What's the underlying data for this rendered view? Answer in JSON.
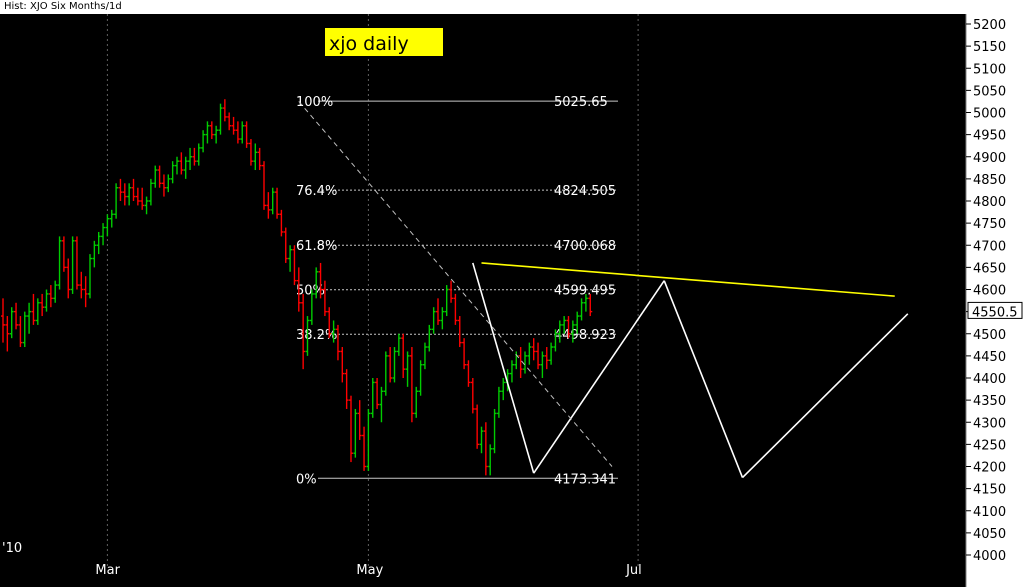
{
  "window": {
    "title": "Hist: XJO Six Months/1d"
  },
  "chart_data": {
    "type": "candlestick",
    "title": "xjo daily",
    "title_box_color": "#ffff00",
    "background": "#000000",
    "up_color": "#00cc00",
    "down_color": "#ff0000",
    "ylim": [
      4000,
      5210
    ],
    "y_ticks": [
      4000,
      4050,
      4100,
      4150,
      4200,
      4250,
      4300,
      4350,
      4400,
      4450,
      4500,
      4550,
      4600,
      4650,
      4700,
      4750,
      4800,
      4850,
      4900,
      4950,
      5000,
      5050,
      5100,
      5150,
      5200
    ],
    "x_labels": [
      {
        "label": "'10",
        "bar": 0
      },
      {
        "label": "Mar",
        "bar": 24
      },
      {
        "label": "May",
        "bar": 84
      },
      {
        "label": "Jul",
        "bar": 146
      }
    ],
    "last_price": "4550.5",
    "last_price_value": 4550.5,
    "fib_levels": [
      {
        "pct": "100%",
        "value": "5025.65",
        "y": 5025.65
      },
      {
        "pct": "76.4%",
        "value": "4824.505",
        "y": 4824.505
      },
      {
        "pct": "61.8%",
        "value": "4700.068",
        "y": 4700.068
      },
      {
        "pct": "50%",
        "value": "4599.495",
        "y": 4599.495
      },
      {
        "pct": "38.2%",
        "value": "4498.923",
        "y": 4498.923
      },
      {
        "pct": "0%",
        "value": "4173.341",
        "y": 4173.341
      }
    ],
    "ohlc": [
      [
        4540,
        4580,
        4480,
        4520
      ],
      [
        4520,
        4540,
        4460,
        4500
      ],
      [
        4500,
        4560,
        4490,
        4550
      ],
      [
        4550,
        4570,
        4510,
        4520
      ],
      [
        4520,
        4540,
        4470,
        4480
      ],
      [
        4480,
        4550,
        4470,
        4540
      ],
      [
        4540,
        4570,
        4500,
        4550
      ],
      [
        4550,
        4590,
        4520,
        4530
      ],
      [
        4530,
        4580,
        4520,
        4570
      ],
      [
        4570,
        4590,
        4540,
        4560
      ],
      [
        4560,
        4600,
        4550,
        4590
      ],
      [
        4590,
        4610,
        4560,
        4580
      ],
      [
        4580,
        4620,
        4570,
        4610
      ],
      [
        4610,
        4720,
        4600,
        4710
      ],
      [
        4710,
        4720,
        4640,
        4650
      ],
      [
        4650,
        4670,
        4580,
        4600
      ],
      [
        4600,
        4720,
        4590,
        4710
      ],
      [
        4710,
        4720,
        4600,
        4610
      ],
      [
        4610,
        4640,
        4580,
        4600
      ],
      [
        4600,
        4630,
        4560,
        4590
      ],
      [
        4590,
        4680,
        4580,
        4670
      ],
      [
        4670,
        4710,
        4650,
        4700
      ],
      [
        4700,
        4730,
        4680,
        4720
      ],
      [
        4720,
        4750,
        4700,
        4740
      ],
      [
        4740,
        4770,
        4720,
        4760
      ],
      [
        4760,
        4780,
        4740,
        4770
      ],
      [
        4770,
        4840,
        4760,
        4830
      ],
      [
        4830,
        4850,
        4800,
        4820
      ],
      [
        4820,
        4840,
        4790,
        4810
      ],
      [
        4810,
        4840,
        4790,
        4830
      ],
      [
        4830,
        4850,
        4800,
        4810
      ],
      [
        4810,
        4830,
        4790,
        4800
      ],
      [
        4800,
        4830,
        4780,
        4790
      ],
      [
        4790,
        4810,
        4770,
        4800
      ],
      [
        4800,
        4850,
        4790,
        4840
      ],
      [
        4840,
        4880,
        4830,
        4870
      ],
      [
        4870,
        4880,
        4830,
        4840
      ],
      [
        4840,
        4860,
        4810,
        4830
      ],
      [
        4830,
        4860,
        4820,
        4850
      ],
      [
        4850,
        4890,
        4840,
        4880
      ],
      [
        4880,
        4900,
        4860,
        4890
      ],
      [
        4890,
        4910,
        4860,
        4870
      ],
      [
        4870,
        4900,
        4850,
        4890
      ],
      [
        4890,
        4920,
        4870,
        4900
      ],
      [
        4900,
        4920,
        4880,
        4890
      ],
      [
        4890,
        4930,
        4880,
        4920
      ],
      [
        4920,
        4960,
        4910,
        4950
      ],
      [
        4950,
        4980,
        4930,
        4970
      ],
      [
        4970,
        4980,
        4940,
        4950
      ],
      [
        4950,
        4970,
        4930,
        4960
      ],
      [
        4960,
        5020,
        4950,
        5010
      ],
      [
        5010,
        5030,
        4980,
        4990
      ],
      [
        4990,
        5000,
        4960,
        4970
      ],
      [
        4970,
        4990,
        4950,
        4960
      ],
      [
        4960,
        4980,
        4930,
        4940
      ],
      [
        4940,
        4980,
        4930,
        4970
      ],
      [
        4970,
        4980,
        4920,
        4930
      ],
      [
        4930,
        4940,
        4880,
        4890
      ],
      [
        4890,
        4930,
        4870,
        4910
      ],
      [
        4910,
        4920,
        4870,
        4880
      ],
      [
        4880,
        4890,
        4780,
        4790
      ],
      [
        4790,
        4820,
        4760,
        4780
      ],
      [
        4780,
        4830,
        4770,
        4820
      ],
      [
        4820,
        4830,
        4760,
        4770
      ],
      [
        4770,
        4780,
        4720,
        4730
      ],
      [
        4730,
        4740,
        4660,
        4670
      ],
      [
        4670,
        4700,
        4640,
        4690
      ],
      [
        4690,
        4700,
        4610,
        4620
      ],
      [
        4620,
        4650,
        4550,
        4570
      ],
      [
        4570,
        4590,
        4420,
        4460
      ],
      [
        4460,
        4540,
        4450,
        4530
      ],
      [
        4530,
        4600,
        4520,
        4590
      ],
      [
        4590,
        4650,
        4580,
        4640
      ],
      [
        4640,
        4660,
        4580,
        4600
      ],
      [
        4600,
        4620,
        4540,
        4550
      ],
      [
        4550,
        4560,
        4490,
        4500
      ],
      [
        4500,
        4530,
        4480,
        4510
      ],
      [
        4510,
        4520,
        4440,
        4460
      ],
      [
        4460,
        4470,
        4390,
        4410
      ],
      [
        4410,
        4420,
        4330,
        4350
      ],
      [
        4350,
        4360,
        4210,
        4230
      ],
      [
        4230,
        4330,
        4220,
        4320
      ],
      [
        4320,
        4350,
        4260,
        4270
      ],
      [
        4270,
        4290,
        4190,
        4200
      ],
      [
        4200,
        4330,
        4190,
        4320
      ],
      [
        4320,
        4400,
        4310,
        4390
      ],
      [
        4390,
        4400,
        4330,
        4340
      ],
      [
        4340,
        4380,
        4300,
        4370
      ],
      [
        4370,
        4460,
        4360,
        4450
      ],
      [
        4450,
        4470,
        4390,
        4400
      ],
      [
        4400,
        4470,
        4390,
        4460
      ],
      [
        4460,
        4500,
        4450,
        4490
      ],
      [
        4490,
        4500,
        4400,
        4420
      ],
      [
        4420,
        4460,
        4380,
        4450
      ],
      [
        4450,
        4470,
        4300,
        4320
      ],
      [
        4320,
        4380,
        4310,
        4370
      ],
      [
        4370,
        4440,
        4360,
        4430
      ],
      [
        4430,
        4480,
        4420,
        4470
      ],
      [
        4470,
        4520,
        4460,
        4510
      ],
      [
        4510,
        4560,
        4500,
        4550
      ],
      [
        4550,
        4580,
        4520,
        4530
      ],
      [
        4530,
        4560,
        4510,
        4550
      ],
      [
        4550,
        4610,
        4540,
        4600
      ],
      [
        4600,
        4620,
        4570,
        4580
      ],
      [
        4580,
        4590,
        4520,
        4530
      ],
      [
        4530,
        4540,
        4470,
        4480
      ],
      [
        4480,
        4490,
        4420,
        4430
      ],
      [
        4430,
        4440,
        4380,
        4390
      ],
      [
        4390,
        4400,
        4320,
        4330
      ],
      [
        4330,
        4340,
        4240,
        4250
      ],
      [
        4250,
        4290,
        4230,
        4280
      ],
      [
        4280,
        4300,
        4180,
        4200
      ],
      [
        4200,
        4250,
        4180,
        4240
      ],
      [
        4240,
        4330,
        4230,
        4320
      ],
      [
        4320,
        4380,
        4310,
        4370
      ],
      [
        4370,
        4400,
        4350,
        4390
      ],
      [
        4390,
        4420,
        4370,
        4410
      ],
      [
        4410,
        4440,
        4390,
        4430
      ],
      [
        4430,
        4460,
        4420,
        4450
      ],
      [
        4450,
        4470,
        4400,
        4420
      ],
      [
        4420,
        4460,
        4410,
        4450
      ],
      [
        4450,
        4480,
        4430,
        4470
      ],
      [
        4470,
        4490,
        4440,
        4460
      ],
      [
        4460,
        4480,
        4420,
        4430
      ],
      [
        4430,
        4460,
        4400,
        4450
      ],
      [
        4450,
        4470,
        4420,
        4440
      ],
      [
        4440,
        4480,
        4430,
        4470
      ],
      [
        4470,
        4510,
        4460,
        4500
      ],
      [
        4500,
        4530,
        4480,
        4520
      ],
      [
        4520,
        4540,
        4500,
        4530
      ],
      [
        4530,
        4540,
        4490,
        4500
      ],
      [
        4500,
        4530,
        4480,
        4520
      ],
      [
        4520,
        4550,
        4500,
        4540
      ],
      [
        4540,
        4580,
        4530,
        4570
      ],
      [
        4570,
        4590,
        4550,
        4580
      ],
      [
        4580,
        4590,
        4540,
        4550
      ]
    ],
    "lines": [
      {
        "name": "yellow-neckline",
        "color": "#ffff00",
        "dashed": false,
        "from": {
          "bar": 110,
          "y": 4660
        },
        "to": {
          "bar": 205,
          "y": 4585
        }
      },
      {
        "name": "white-down-leg-1",
        "color": "#ffffff",
        "dashed": false,
        "from": {
          "bar": 108,
          "y": 4660
        },
        "to": {
          "bar": 122,
          "y": 4185
        }
      },
      {
        "name": "white-up-leg-1",
        "color": "#ffffff",
        "dashed": false,
        "from": {
          "bar": 122,
          "y": 4185
        },
        "to": {
          "bar": 152,
          "y": 4620
        }
      },
      {
        "name": "white-down-leg-2",
        "color": "#ffffff",
        "dashed": false,
        "from": {
          "bar": 152,
          "y": 4620
        },
        "to": {
          "bar": 170,
          "y": 4175
        }
      },
      {
        "name": "white-trendline",
        "color": "#ffffff",
        "dashed": false,
        "from": {
          "bar": 170,
          "y": 4175
        },
        "to": {
          "bar": 208,
          "y": 4545
        }
      },
      {
        "name": "fib-dashed",
        "color": "#c0c0c0",
        "dashed": true,
        "from": {
          "bar": 68,
          "y": 5025
        },
        "to": {
          "bar": 140,
          "y": 4200
        }
      }
    ]
  }
}
